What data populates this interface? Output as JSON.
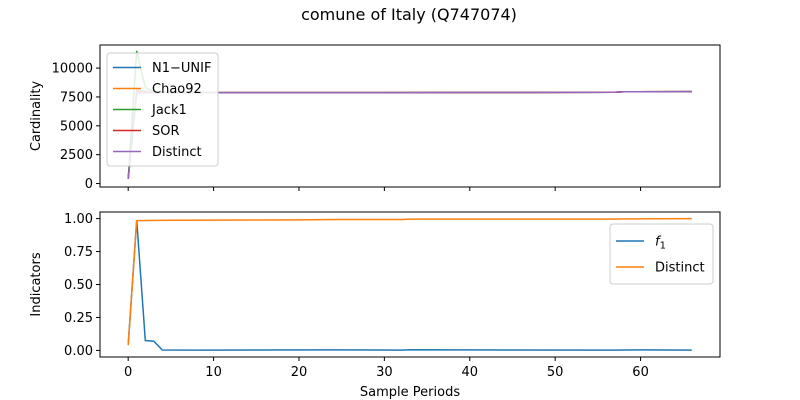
{
  "chart_data": {
    "title": "comune of Italy (Q747074)",
    "xlabel": "Sample Periods",
    "subplots": [
      {
        "type": "line",
        "ylabel": "Cardinality",
        "xlim": [
          -3.3,
          69.3
        ],
        "ylim": [
          -300,
          12000
        ],
        "xticks": [
          0,
          10,
          20,
          30,
          40,
          50,
          60
        ],
        "yticks": [
          0,
          2500,
          5000,
          7500,
          10000
        ],
        "ytick_labels": [
          "0",
          "2500",
          "5000",
          "7500",
          "10000"
        ],
        "show_xtick_labels": false,
        "legend_position": "top-left",
        "series": [
          {
            "name": "N1−UNIF",
            "color": "#1f77b4",
            "points": [
              [
                0,
                400
              ],
              [
                1,
                8100
              ],
              [
                2,
                8000
              ],
              [
                3,
                7950
              ],
              [
                4,
                7900
              ],
              [
                10,
                7880
              ],
              [
                30,
                7880
              ],
              [
                57,
                7900
              ],
              [
                58,
                7950
              ],
              [
                66,
                7960
              ]
            ]
          },
          {
            "name": "Chao92",
            "color": "#ff7f0e",
            "points": [
              [
                0,
                400
              ],
              [
                1,
                8000
              ],
              [
                2,
                7950
              ],
              [
                3,
                7920
              ],
              [
                4,
                7890
              ],
              [
                10,
                7880
              ],
              [
                30,
                7880
              ],
              [
                57,
                7900
              ],
              [
                58,
                7950
              ],
              [
                66,
                7960
              ]
            ]
          },
          {
            "name": "Jack1",
            "color": "#2ca02c",
            "points": [
              [
                0,
                400
              ],
              [
                1,
                11500
              ],
              [
                2,
                8300
              ],
              [
                3,
                8000
              ],
              [
                4,
                7900
              ],
              [
                10,
                7880
              ],
              [
                30,
                7880
              ],
              [
                57,
                7900
              ],
              [
                58,
                7950
              ],
              [
                66,
                7960
              ]
            ]
          },
          {
            "name": "SOR",
            "color": "#d62728",
            "points": [
              [
                0,
                400
              ],
              [
                1,
                7900
              ],
              [
                2,
                7880
              ],
              [
                4,
                7880
              ],
              [
                10,
                7880
              ],
              [
                30,
                7880
              ],
              [
                57,
                7900
              ],
              [
                58,
                7950
              ],
              [
                66,
                7960
              ]
            ]
          },
          {
            "name": "Distinct",
            "color": "#9467bd",
            "points": [
              [
                0,
                400
              ],
              [
                1,
                7850
              ],
              [
                4,
                7860
              ],
              [
                10,
                7870
              ],
              [
                30,
                7880
              ],
              [
                57,
                7900
              ],
              [
                58,
                7950
              ],
              [
                66,
                7960
              ]
            ]
          }
        ]
      },
      {
        "type": "line",
        "ylabel": "Indicators",
        "xlim": [
          -3.3,
          69.3
        ],
        "ylim": [
          -0.05,
          1.05
        ],
        "xticks": [
          0,
          10,
          20,
          30,
          40,
          50,
          60
        ],
        "yticks": [
          0.0,
          0.25,
          0.5,
          0.75,
          1.0
        ],
        "ytick_labels": [
          "0.00",
          "0.25",
          "0.50",
          "0.75",
          "1.00"
        ],
        "show_xtick_labels": true,
        "legend_position": "top-right",
        "series": [
          {
            "name": "f1",
            "color": "#1f77b4",
            "points": [
              [
                0,
                0.04
              ],
              [
                1,
                0.99
              ],
              [
                2,
                0.075
              ],
              [
                3,
                0.07
              ],
              [
                4,
                0.003
              ],
              [
                10,
                0.002
              ],
              [
                24,
                0.004
              ],
              [
                32,
                0.002
              ],
              [
                33,
                0.005
              ],
              [
                57,
                0.002
              ],
              [
                60,
                0.004
              ],
              [
                66,
                0.002
              ]
            ]
          },
          {
            "name": "Distinct",
            "color": "#ff7f0e",
            "points": [
              [
                0,
                0.04
              ],
              [
                1,
                0.985
              ],
              [
                5,
                0.988
              ],
              [
                20,
                0.99
              ],
              [
                24,
                0.993
              ],
              [
                32,
                0.993
              ],
              [
                33,
                0.996
              ],
              [
                57,
                0.996
              ],
              [
                58,
                0.998
              ],
              [
                66,
                1.0
              ]
            ]
          }
        ]
      }
    ]
  }
}
